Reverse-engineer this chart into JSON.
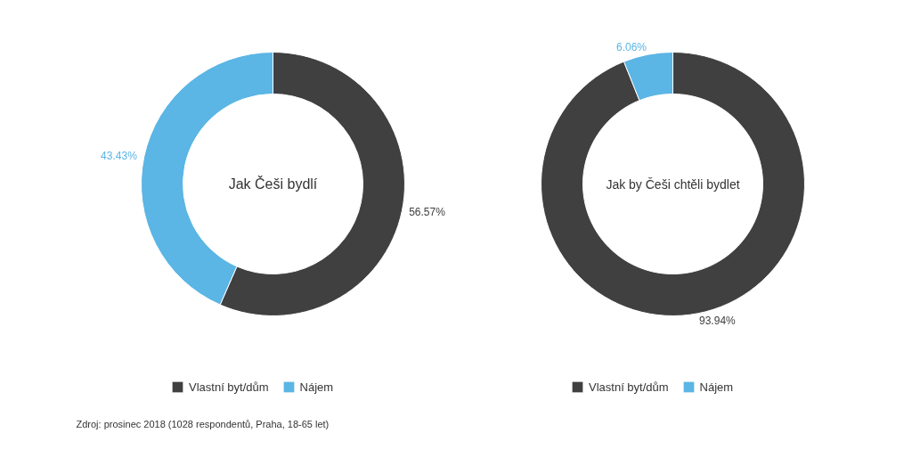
{
  "chart_data": [
    {
      "type": "donut",
      "title": "Jak Češi bydlí",
      "categories": [
        "Vlastní byt/dům",
        "Nájem"
      ],
      "values": [
        56.57,
        43.43
      ],
      "colors": [
        "#404040",
        "#5bb5e5"
      ],
      "value_labels": [
        "56.57%",
        "43.43%"
      ],
      "legend": "bottom",
      "annotations": [
        "Zdroj: prosinec 2018 (1028 respondentů, Praha, 18-65 let)"
      ]
    },
    {
      "type": "donut",
      "title": "Jak by Češi chtěli bydlet",
      "categories": [
        "Vlastní byt/dům",
        "Nájem"
      ],
      "values": [
        93.94,
        6.06
      ],
      "colors": [
        "#404040",
        "#5bb5e5"
      ],
      "value_labels": [
        "93.94%",
        "6.06%"
      ],
      "legend": "bottom"
    }
  ]
}
